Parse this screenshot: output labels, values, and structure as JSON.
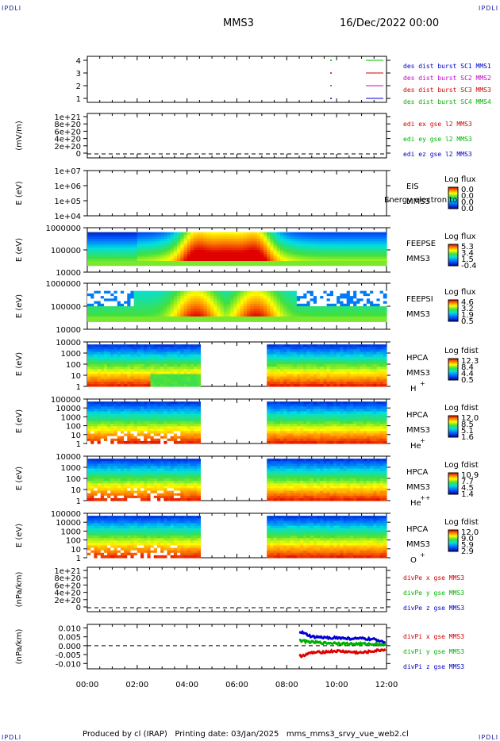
{
  "header": {
    "corner_tl": "IPDLI",
    "corner_tr": "IPDLI",
    "corner_bl": "IPDLI",
    "corner_br": "IPDLI",
    "spacecraft": "MMS3",
    "date": "16/Dec/2022 00:00"
  },
  "footer": {
    "text": "Produced by cl (IRAP)   Printing date: 03/Jan/2025   mms_mms3_srvy_vue_web2.cl"
  },
  "xaxis": {
    "ticks": [
      "00:00",
      "02:00",
      "04:00",
      "06:00",
      "08:00",
      "10:00",
      "12:00"
    ]
  },
  "panels": {
    "p1": {
      "ticks": [
        "4",
        "3",
        "2",
        "1"
      ],
      "legend": [
        {
          "text": "des dist burst SC1 MMS1",
          "color": "#0000c8"
        },
        {
          "text": "des dist burst SC2 MMS2",
          "color": "#c800c8"
        },
        {
          "text": "des dist burst SC3 MMS3",
          "color": "#d20000"
        },
        {
          "text": "des dist burst SC4 MMS4",
          "color": "#00b400"
        }
      ],
      "line_colors": [
        "#00c000",
        "#d00000",
        "#d000d0",
        "#0000d0"
      ]
    },
    "p2": {
      "ylabel": "(mV/m)",
      "ticks": [
        "1e+21",
        "8e+20",
        "6e+20",
        "4e+20",
        "2e+20",
        "0"
      ],
      "legend": [
        {
          "text": "edi ex gse l2 MMS3",
          "color": "#d20000"
        },
        {
          "text": "edi ey gse l2 MMS3",
          "color": "#00b400"
        },
        {
          "text": "edi ez gse l2 MMS3",
          "color": "#0000c8"
        }
      ]
    },
    "p3": {
      "ylabel": "E (eV)",
      "ticks": [
        "1e+07",
        "1e+06",
        "1e+05",
        "1e+04"
      ],
      "name": "EIS",
      "sc": "MMS3",
      "overlay": "Energy electron to",
      "cbar_title": "Log flux",
      "cbar_ticks": [
        "0.0",
        "0.0",
        "0.0",
        "0.0"
      ]
    },
    "p4": {
      "ylabel": "E (eV)",
      "ticks": [
        "1000000",
        "100000",
        "10000"
      ],
      "name": "FEEPSE",
      "sc": "MMS3",
      "cbar_title": "Log flux",
      "cbar_ticks": [
        "5.3",
        "3.4",
        "1.5",
        "-0.4"
      ]
    },
    "p5": {
      "ylabel": "E (eV)",
      "ticks": [
        "1000000",
        "100000",
        "10000"
      ],
      "name": "FEEPSI",
      "sc": "MMS3",
      "cbar_title": "Log flux",
      "cbar_ticks": [
        "4.6",
        "3.2",
        "1.9",
        "0.5"
      ]
    },
    "p6": {
      "ylabel": "E (eV)",
      "ticks": [
        "10000",
        "1000",
        "100",
        "10",
        "1"
      ],
      "name": "HPCA",
      "sc": "MMS3",
      "species": "H",
      "charge": "+",
      "cbar_title": "Log fdist",
      "cbar_ticks": [
        "12.3",
        "8.4",
        "4.4",
        "0.5"
      ]
    },
    "p7": {
      "ylabel": "E (eV)",
      "ticks": [
        "100000",
        "10000",
        "1000",
        "100",
        "10",
        "1"
      ],
      "name": "HPCA",
      "sc": "MMS3",
      "species": "He",
      "charge": "+",
      "cbar_title": "Log fdist",
      "cbar_ticks": [
        "12.0",
        "8.5",
        "5.1",
        "1.6"
      ]
    },
    "p8": {
      "ylabel": "E (eV)",
      "ticks": [
        "10000",
        "1000",
        "100",
        "10",
        "1"
      ],
      "name": "HPCA",
      "sc": "MMS3",
      "species": "He",
      "charge": "++",
      "cbar_title": "Log fdist",
      "cbar_ticks": [
        "10.9",
        "7.7",
        "4.5",
        "1.4"
      ]
    },
    "p9": {
      "ylabel": "E (eV)",
      "ticks": [
        "100000",
        "10000",
        "1000",
        "100",
        "10",
        "1"
      ],
      "name": "HPCA",
      "sc": "MMS3",
      "species": "O",
      "charge": "+",
      "cbar_title": "Log fdist",
      "cbar_ticks": [
        "12.0",
        "9.0",
        "5.9",
        "2.9"
      ]
    },
    "p10": {
      "ylabel": "(nPa/km)",
      "ticks": [
        "1e+21",
        "8e+20",
        "6e+20",
        "4e+20",
        "2e+20",
        "0"
      ],
      "legend": [
        {
          "text": "divPe x gse MMS3",
          "color": "#d20000"
        },
        {
          "text": "divPe y gse MMS3",
          "color": "#00b400"
        },
        {
          "text": "divPe z gse MMS3",
          "color": "#0000c8"
        }
      ]
    },
    "p11": {
      "ylabel": "(nPa/km)",
      "ticks": [
        "0.010",
        "0.005",
        "0.000",
        "-0.005",
        "-0.010"
      ],
      "legend": [
        {
          "text": "divPi x gse MMS3",
          "color": "#d20000"
        },
        {
          "text": "divPi y gse MMS3",
          "color": "#00b400"
        },
        {
          "text": "divPi z gse MMS3",
          "color": "#0000c8"
        }
      ]
    }
  },
  "chart_data": [
    {
      "type": "line",
      "title": "des dist burst",
      "x_range": [
        "00:00",
        "12:00"
      ],
      "ylim": [
        0.5,
        4.5
      ],
      "series": [
        {
          "name": "des dist burst SC1 MMS1",
          "points": [
            [
              "09:45",
              1
            ]
          ]
        },
        {
          "name": "des dist burst SC2 MMS2",
          "points": [
            [
              "09:45",
              2
            ]
          ]
        },
        {
          "name": "des dist burst SC3 MMS3",
          "points": [
            [
              "09:45",
              3
            ]
          ]
        },
        {
          "name": "des dist burst SC4 MMS4",
          "points": [
            [
              "09:45",
              4
            ]
          ]
        }
      ]
    },
    {
      "type": "line",
      "ylabel": "(mV/m)",
      "ylim": [
        0,
        1e+21
      ],
      "dashed_zero": true,
      "series": [
        {
          "name": "edi ex gse l2 MMS3"
        },
        {
          "name": "edi ey gse l2 MMS3"
        },
        {
          "name": "edi ez gse l2 MMS3"
        }
      ]
    },
    {
      "type": "heatmap",
      "name": "EIS",
      "ylabel": "E (eV)",
      "yscale": "log",
      "ylim": [
        10000.0,
        10000000.0
      ],
      "colorbar": "Log flux",
      "data": "empty"
    },
    {
      "type": "heatmap",
      "name": "FEEPSE",
      "ylabel": "E (eV)",
      "yscale": "log",
      "ylim": [
        10000.0,
        1000000.0
      ],
      "colorbar_range": [
        -0.4,
        5.3
      ],
      "high_flux_interval": [
        "03:00",
        "08:00"
      ]
    },
    {
      "type": "heatmap",
      "name": "FEEPSI",
      "ylabel": "E (eV)",
      "yscale": "log",
      "ylim": [
        10000.0,
        1000000.0
      ],
      "colorbar_range": [
        0.5,
        4.6
      ],
      "high_flux_interval": [
        "03:30",
        "07:30"
      ]
    },
    {
      "type": "heatmap",
      "name": "HPCA H+",
      "ylabel": "E (eV)",
      "yscale": "log",
      "ylim": [
        1,
        10000.0
      ],
      "colorbar_range": [
        0.5,
        12.3
      ],
      "data_gap": [
        "04:25",
        "07:05"
      ]
    },
    {
      "type": "heatmap",
      "name": "HPCA He+",
      "ylabel": "E (eV)",
      "yscale": "log",
      "ylim": [
        1,
        100000.0
      ],
      "colorbar_range": [
        1.6,
        12.0
      ],
      "data_gap": [
        "04:25",
        "07:05"
      ]
    },
    {
      "type": "heatmap",
      "name": "HPCA He++",
      "ylabel": "E (eV)",
      "yscale": "log",
      "ylim": [
        1,
        10000.0
      ],
      "colorbar_range": [
        1.4,
        10.9
      ],
      "data_gap": [
        "04:25",
        "07:05"
      ]
    },
    {
      "type": "heatmap",
      "name": "HPCA O+",
      "ylabel": "E (eV)",
      "yscale": "log",
      "ylim": [
        1,
        100000.0
      ],
      "colorbar_range": [
        2.9,
        12.0
      ],
      "data_gap": [
        "04:25",
        "07:05"
      ]
    },
    {
      "type": "line",
      "ylabel": "(nPa/km)",
      "ylim": [
        0,
        1e+21
      ],
      "dashed_zero": true,
      "series": [
        {
          "name": "divPe x gse MMS3"
        },
        {
          "name": "divPe y gse MMS3"
        },
        {
          "name": "divPe z gse MMS3"
        }
      ]
    },
    {
      "type": "line",
      "ylabel": "(nPa/km)",
      "ylim": [
        -0.013,
        0.012
      ],
      "dashed_zero": true,
      "series": [
        {
          "name": "divPi x gse MMS3",
          "x": [
            "08:30",
            "09:00",
            "09:30",
            "10:00",
            "10:30",
            "11:00",
            "11:30",
            "12:00"
          ],
          "values": [
            -0.006,
            -0.004,
            -0.0035,
            -0.003,
            -0.0035,
            -0.004,
            -0.003,
            -0.002
          ]
        },
        {
          "name": "divPi y gse MMS3",
          "x": [
            "08:30",
            "09:00",
            "09:30",
            "10:00",
            "10:30",
            "11:00",
            "11:30",
            "12:00"
          ],
          "values": [
            0.003,
            0.002,
            0.0015,
            0.0015,
            0.001,
            0.001,
            0.001,
            0.0005
          ]
        },
        {
          "name": "divPi z gse MMS3",
          "x": [
            "08:30",
            "09:00",
            "09:30",
            "10:00",
            "10:30",
            "11:00",
            "11:30",
            "12:00"
          ],
          "values": [
            0.008,
            0.005,
            0.0045,
            0.0045,
            0.004,
            0.004,
            0.0035,
            0.002
          ]
        }
      ]
    }
  ]
}
